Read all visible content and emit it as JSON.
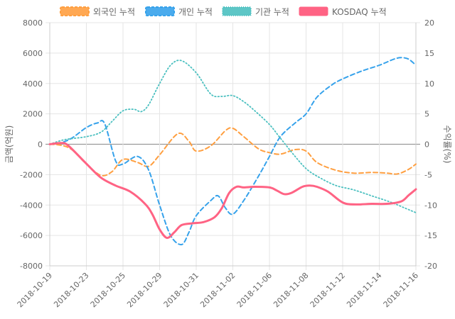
{
  "chart_data": {
    "type": "line",
    "legend": [
      {
        "name": "외국인 누적",
        "color": "#FF9F40",
        "swatch": "dashed"
      },
      {
        "name": "개인 누적",
        "color": "#36A2EB",
        "swatch": "dashed"
      },
      {
        "name": "기관 누적",
        "color": "#4BC0C0",
        "swatch": "dotted"
      },
      {
        "name": "KOSDAQ 누적",
        "color": "#FF6384",
        "swatch": "solid"
      }
    ],
    "legend_position": "top",
    "x_tick_labels": [
      "2018-10-19",
      "2018-10-23",
      "2018-10-25",
      "2018-10-29",
      "2018-10-31",
      "2018-11-02",
      "2018-11-06",
      "2018-11-08",
      "2018-11-12",
      "2018-11-14",
      "2018-11-16"
    ],
    "y_left": {
      "label": "금액(억원)",
      "min": -8000,
      "max": 8000,
      "step": 2000,
      "ticks": [
        "8000",
        "6000",
        "4000",
        "2000",
        "0",
        "-2000",
        "-4000",
        "-6000",
        "-8000"
      ]
    },
    "y_right": {
      "label": "수익률(%)",
      "min": -20,
      "max": 20,
      "step": 5,
      "ticks": [
        "20",
        "15",
        "10",
        "5",
        "0",
        "-5",
        "-10",
        "-15",
        "-20"
      ]
    },
    "series": [
      {
        "name": "외국인 누적",
        "axis": "left",
        "color": "#FF9F40",
        "style": "dashed",
        "points": [
          [
            0,
            0
          ],
          [
            0.3,
            -60
          ],
          [
            0.6,
            -350
          ],
          [
            1,
            -1300
          ],
          [
            1.4,
            -2050
          ],
          [
            1.7,
            -1800
          ],
          [
            2,
            -1000
          ],
          [
            2.4,
            -1200
          ],
          [
            2.7,
            -1450
          ],
          [
            3,
            -700
          ],
          [
            3.5,
            700
          ],
          [
            3.8,
            200
          ],
          [
            4,
            -450
          ],
          [
            4.4,
            -100
          ],
          [
            4.8,
            900
          ],
          [
            5,
            1050
          ],
          [
            5.3,
            500
          ],
          [
            5.7,
            -300
          ],
          [
            6,
            -550
          ],
          [
            6.3,
            -650
          ],
          [
            6.7,
            -350
          ],
          [
            7,
            -450
          ],
          [
            7.3,
            -1200
          ],
          [
            7.8,
            -1700
          ],
          [
            8.3,
            -1900
          ],
          [
            8.8,
            -1850
          ],
          [
            9.2,
            -1900
          ],
          [
            9.5,
            -1950
          ],
          [
            9.8,
            -1650
          ],
          [
            10,
            -1300
          ]
        ]
      },
      {
        "name": "개인 누적",
        "axis": "left",
        "color": "#36A2EB",
        "style": "dashed",
        "points": [
          [
            0,
            0
          ],
          [
            0.3,
            100
          ],
          [
            0.6,
            400
          ],
          [
            1,
            1100
          ],
          [
            1.3,
            1400
          ],
          [
            1.5,
            1350
          ],
          [
            1.8,
            -1100
          ],
          [
            2.0,
            -1300
          ],
          [
            2.4,
            -800
          ],
          [
            2.7,
            -1700
          ],
          [
            3,
            -4000
          ],
          [
            3.3,
            -6000
          ],
          [
            3.6,
            -6600
          ],
          [
            3.8,
            -5800
          ],
          [
            4,
            -4700
          ],
          [
            4.4,
            -3700
          ],
          [
            4.6,
            -3400
          ],
          [
            4.8,
            -4200
          ],
          [
            5,
            -4600
          ],
          [
            5.3,
            -3700
          ],
          [
            5.7,
            -2100
          ],
          [
            6,
            -800
          ],
          [
            6.3,
            500
          ],
          [
            6.7,
            1400
          ],
          [
            7,
            2000
          ],
          [
            7.3,
            3100
          ],
          [
            7.7,
            3900
          ],
          [
            8,
            4300
          ],
          [
            8.5,
            4800
          ],
          [
            9,
            5200
          ],
          [
            9.4,
            5600
          ],
          [
            9.6,
            5700
          ],
          [
            9.8,
            5600
          ],
          [
            10,
            5200
          ]
        ]
      },
      {
        "name": "기관 누적",
        "axis": "left",
        "color": "#4BC0C0",
        "style": "dotted",
        "points": [
          [
            0,
            0
          ],
          [
            0.4,
            300
          ],
          [
            1,
            500
          ],
          [
            1.4,
            800
          ],
          [
            1.7,
            1500
          ],
          [
            2,
            2200
          ],
          [
            2.3,
            2300
          ],
          [
            2.5,
            2150
          ],
          [
            2.7,
            2600
          ],
          [
            3,
            4000
          ],
          [
            3.3,
            5200
          ],
          [
            3.6,
            5500
          ],
          [
            4,
            4700
          ],
          [
            4.4,
            3300
          ],
          [
            4.7,
            3150
          ],
          [
            5,
            3200
          ],
          [
            5.3,
            2800
          ],
          [
            5.6,
            2200
          ],
          [
            6,
            1300
          ],
          [
            6.3,
            400
          ],
          [
            6.7,
            -800
          ],
          [
            7,
            -1600
          ],
          [
            7.3,
            -2100
          ],
          [
            7.8,
            -2700
          ],
          [
            8.3,
            -3000
          ],
          [
            8.8,
            -3400
          ],
          [
            9.3,
            -3800
          ],
          [
            9.7,
            -4200
          ],
          [
            10,
            -4500
          ]
        ]
      },
      {
        "name": "KOSDAQ 누적",
        "axis": "right",
        "color": "#FF6384",
        "style": "solid",
        "points": [
          [
            0,
            0
          ],
          [
            0.3,
            0.2
          ],
          [
            0.5,
            -0.2
          ],
          [
            1,
            -3.2
          ],
          [
            1.4,
            -5.5
          ],
          [
            1.8,
            -6.8
          ],
          [
            2.2,
            -7.8
          ],
          [
            2.6,
            -9.8
          ],
          [
            2.8,
            -11.5
          ],
          [
            3,
            -14
          ],
          [
            3.2,
            -15.4
          ],
          [
            3.4,
            -14.5
          ],
          [
            3.6,
            -13.3
          ],
          [
            3.9,
            -13
          ],
          [
            4.2,
            -12.8
          ],
          [
            4.5,
            -12
          ],
          [
            4.7,
            -10.5
          ],
          [
            4.9,
            -8
          ],
          [
            5.1,
            -7
          ],
          [
            5.3,
            -7.1
          ],
          [
            5.6,
            -7
          ],
          [
            6,
            -7.1
          ],
          [
            6.2,
            -7.6
          ],
          [
            6.4,
            -8.2
          ],
          [
            6.6,
            -8
          ],
          [
            6.9,
            -7
          ],
          [
            7.1,
            -6.8
          ],
          [
            7.3,
            -7
          ],
          [
            7.6,
            -7.8
          ],
          [
            7.9,
            -9.2
          ],
          [
            8.1,
            -9.8
          ],
          [
            8.4,
            -9.9
          ],
          [
            8.8,
            -9.8
          ],
          [
            9.2,
            -9.8
          ],
          [
            9.6,
            -9.4
          ],
          [
            9.8,
            -8.4
          ],
          [
            10,
            -7.4
          ]
        ]
      }
    ]
  }
}
